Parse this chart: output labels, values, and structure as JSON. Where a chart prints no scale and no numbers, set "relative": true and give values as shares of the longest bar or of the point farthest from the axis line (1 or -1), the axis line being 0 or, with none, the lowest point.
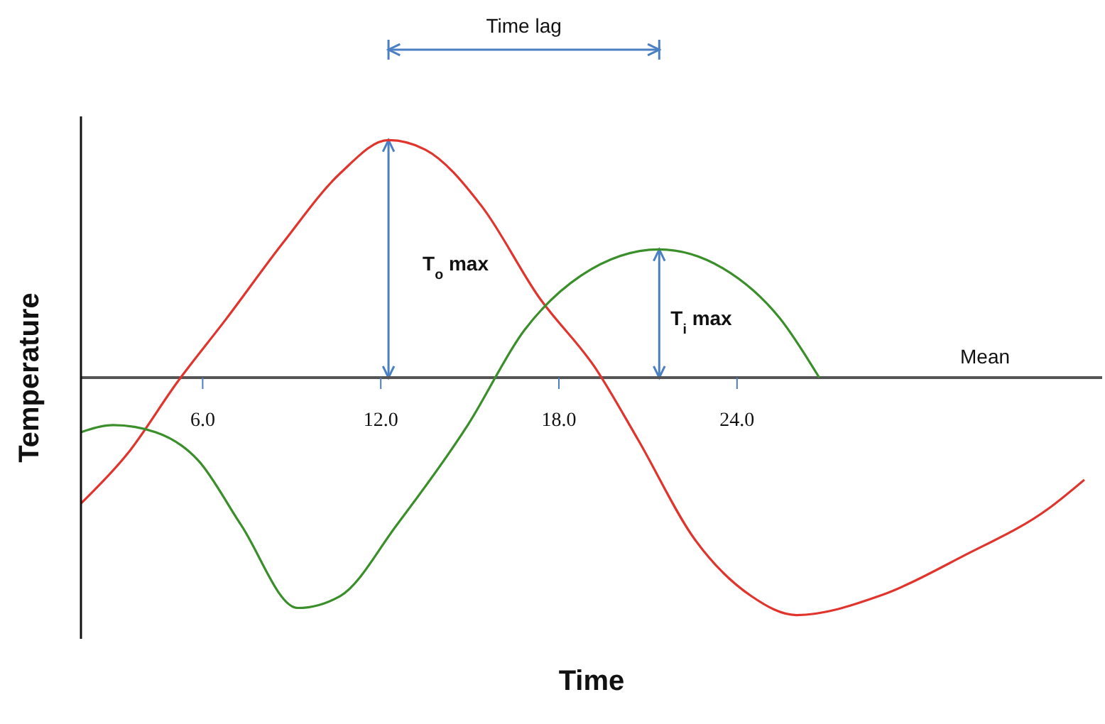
{
  "chart_data": {
    "type": "line",
    "relative": true,
    "xlabel": "Time",
    "ylabel": "Temperature",
    "xlim": [
      1.9,
      36.3
    ],
    "xticks": [
      {
        "value": 6,
        "label": "6.0"
      },
      {
        "value": 12,
        "label": "12.0"
      },
      {
        "value": 18,
        "label": "18.0"
      },
      {
        "value": 24,
        "label": "24.0"
      }
    ],
    "series": [
      {
        "color": "#e0342c",
        "x": [
          1.9,
          3.47,
          5.14,
          6.81,
          8.72,
          10.63,
          12.26,
          13.5,
          15.41,
          17.32,
          19.23,
          20.66,
          22.57,
          24.48,
          26.0,
          28.78,
          31.64,
          34.51,
          35.7
        ],
        "values": [
          -0.53,
          -0.32,
          -0.02,
          0.25,
          0.57,
          0.86,
          1.0,
          0.96,
          0.72,
          0.34,
          0.04,
          -0.26,
          -0.68,
          -0.92,
          -1.0,
          -0.92,
          -0.75,
          -0.55,
          -0.43
        ]
      },
      {
        "color": "#3a8f2a",
        "x": [
          1.9,
          2.99,
          4.42,
          5.86,
          7.29,
          9.2,
          10.63,
          12.54,
          14.93,
          16.84,
          18.75,
          21.38,
          23.53,
          25.44,
          26.77
        ],
        "values": [
          -0.23,
          -0.2,
          -0.23,
          -0.35,
          -0.62,
          -0.97,
          -0.92,
          -0.62,
          -0.2,
          0.2,
          0.43,
          0.54,
          0.46,
          0.25,
          0
        ]
      }
    ],
    "annotations": [
      "Time lag",
      "T$_{o}$ max",
      "T$_{i}$ max",
      "Mean"
    ],
    "grid": false,
    "legend": false,
    "marker": "none",
    "line_style": "solid"
  }
}
